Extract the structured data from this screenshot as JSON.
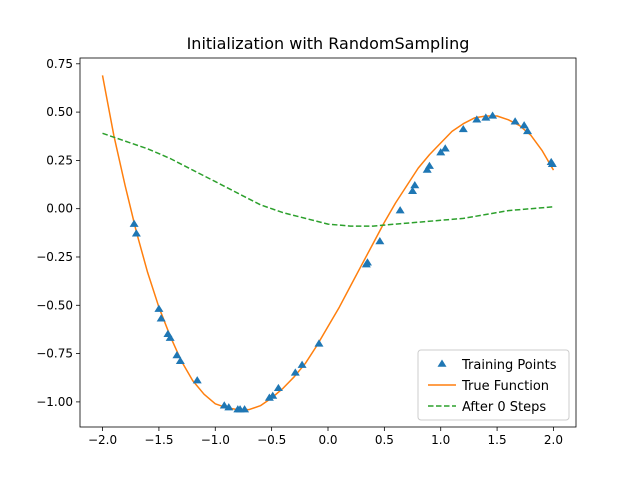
{
  "chart_data": {
    "type": "line",
    "title": "Initialization with RandomSampling",
    "xlabel": "",
    "ylabel": "",
    "xlim": [
      -2.2,
      2.2
    ],
    "ylim": [
      -1.13,
      0.78
    ],
    "x_ticks": [
      -2.0,
      -1.5,
      -1.0,
      -0.5,
      0.0,
      0.5,
      1.0,
      1.5,
      2.0
    ],
    "x_tick_labels": [
      "−2.0",
      "−1.5",
      "−1.0",
      "−0.5",
      "0.0",
      "0.5",
      "1.0",
      "1.5",
      "2.0"
    ],
    "y_ticks": [
      -1.0,
      -0.75,
      -0.5,
      -0.25,
      0.0,
      0.25,
      0.5,
      0.75
    ],
    "y_tick_labels": [
      "−1.00",
      "−0.75",
      "−0.50",
      "−0.25",
      "0.00",
      "0.25",
      "0.50",
      "0.75"
    ],
    "grid": false,
    "legend_position": "lower-right",
    "series": [
      {
        "name": "Training Points",
        "kind": "scatter",
        "marker": "triangle",
        "color": "#1f77b4",
        "points": [
          [
            -1.72,
            -0.08
          ],
          [
            -1.7,
            -0.13
          ],
          [
            -1.5,
            -0.52
          ],
          [
            -1.48,
            -0.57
          ],
          [
            -1.42,
            -0.65
          ],
          [
            -1.4,
            -0.67
          ],
          [
            -1.34,
            -0.76
          ],
          [
            -1.31,
            -0.79
          ],
          [
            -1.16,
            -0.89
          ],
          [
            -0.92,
            -1.02
          ],
          [
            -0.88,
            -1.03
          ],
          [
            -0.8,
            -1.04
          ],
          [
            -0.78,
            -1.04
          ],
          [
            -0.74,
            -1.04
          ],
          [
            -0.52,
            -0.98
          ],
          [
            -0.49,
            -0.97
          ],
          [
            -0.44,
            -0.93
          ],
          [
            -0.29,
            -0.85
          ],
          [
            -0.23,
            -0.81
          ],
          [
            -0.08,
            -0.7
          ],
          [
            0.34,
            -0.29
          ],
          [
            0.35,
            -0.28
          ],
          [
            0.46,
            -0.17
          ],
          [
            0.64,
            -0.01
          ],
          [
            0.75,
            0.09
          ],
          [
            0.77,
            0.12
          ],
          [
            0.88,
            0.2
          ],
          [
            0.9,
            0.22
          ],
          [
            1.0,
            0.29
          ],
          [
            1.04,
            0.31
          ],
          [
            1.2,
            0.41
          ],
          [
            1.32,
            0.46
          ],
          [
            1.4,
            0.47
          ],
          [
            1.46,
            0.48
          ],
          [
            1.66,
            0.45
          ],
          [
            1.74,
            0.43
          ],
          [
            1.77,
            0.4
          ],
          [
            1.98,
            0.24
          ],
          [
            1.99,
            0.23
          ]
        ]
      },
      {
        "name": "True Function",
        "kind": "line",
        "color": "#ff7f0e",
        "dash": "solid",
        "x": [
          -2.0,
          -1.9,
          -1.8,
          -1.7,
          -1.6,
          -1.5,
          -1.4,
          -1.3,
          -1.2,
          -1.1,
          -1.0,
          -0.9,
          -0.8,
          -0.7,
          -0.6,
          -0.5,
          -0.4,
          -0.3,
          -0.2,
          -0.1,
          0.0,
          0.1,
          0.2,
          0.3,
          0.4,
          0.5,
          0.6,
          0.7,
          0.8,
          0.9,
          1.0,
          1.1,
          1.2,
          1.3,
          1.4,
          1.5,
          1.6,
          1.7,
          1.8,
          1.9,
          2.0
        ],
        "y": [
          0.69,
          0.38,
          0.12,
          -0.12,
          -0.33,
          -0.51,
          -0.66,
          -0.79,
          -0.89,
          -0.96,
          -1.01,
          -1.03,
          -1.04,
          -1.04,
          -1.02,
          -0.98,
          -0.93,
          -0.87,
          -0.8,
          -0.71,
          -0.61,
          -0.51,
          -0.4,
          -0.29,
          -0.18,
          -0.07,
          0.03,
          0.12,
          0.21,
          0.28,
          0.34,
          0.4,
          0.44,
          0.47,
          0.48,
          0.48,
          0.46,
          0.43,
          0.38,
          0.3,
          0.2
        ]
      },
      {
        "name": "After 0 Steps",
        "kind": "line",
        "color": "#2ca02c",
        "dash": "dashed",
        "x": [
          -2.0,
          -1.8,
          -1.6,
          -1.4,
          -1.2,
          -1.0,
          -0.8,
          -0.6,
          -0.4,
          -0.2,
          0.0,
          0.2,
          0.4,
          0.6,
          0.8,
          1.0,
          1.2,
          1.4,
          1.6,
          1.8,
          2.0
        ],
        "y": [
          0.39,
          0.35,
          0.31,
          0.26,
          0.2,
          0.14,
          0.08,
          0.02,
          -0.02,
          -0.05,
          -0.08,
          -0.09,
          -0.09,
          -0.08,
          -0.07,
          -0.06,
          -0.05,
          -0.03,
          -0.01,
          0.0,
          0.01
        ]
      }
    ]
  }
}
